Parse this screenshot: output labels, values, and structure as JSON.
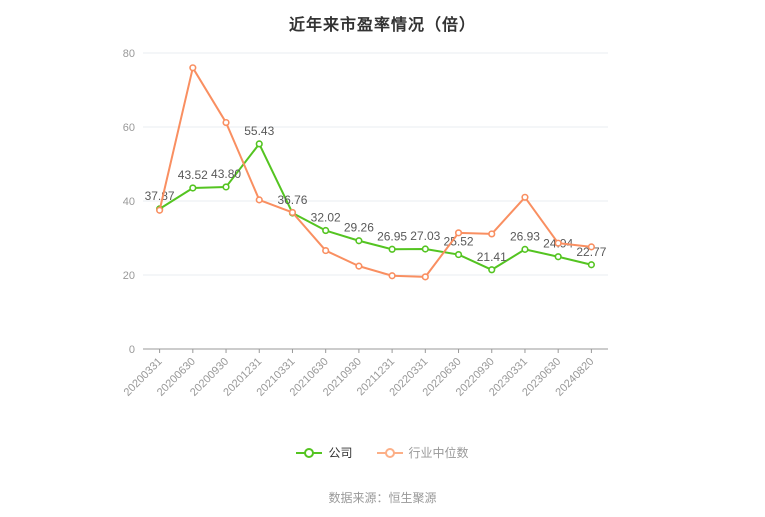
{
  "title": "近年来市盈率情况（倍）",
  "footer": "数据来源：恒生聚源",
  "legend": {
    "company": {
      "label": "公司",
      "icon": "line-series-icon",
      "color": "#54C421",
      "text_color": "#333333"
    },
    "industry": {
      "label": "行业中位数",
      "icon": "line-series-icon",
      "color": "#FCAF87",
      "text_color": "#999999"
    }
  },
  "colors": {
    "background": "#FFFFFF",
    "title": "#333333",
    "grid": "#E8ECF2",
    "axis": "#999999",
    "axis_label": "#999999",
    "data_label": "#595959",
    "footer": "#999999",
    "company_line": "#54C421",
    "industry_line": "#F98F61"
  },
  "chart_data": {
    "type": "line",
    "title": "近年来市盈率情况（倍）",
    "xlabel": "",
    "ylabel": "",
    "ylim": [
      0,
      80
    ],
    "yticks": [
      0,
      20,
      40,
      60,
      80
    ],
    "grid": true,
    "legend_position": "bottom",
    "categories": [
      "20200331",
      "20200630",
      "20200930",
      "20201231",
      "20210331",
      "20210630",
      "20210930",
      "20211231",
      "20220331",
      "20220630",
      "20220930",
      "20230331",
      "20230630",
      "20240820"
    ],
    "series": [
      {
        "name": "公司",
        "color": "#54C421",
        "values": [
          37.87,
          43.52,
          43.8,
          55.43,
          36.76,
          32.02,
          29.26,
          26.95,
          27.03,
          25.52,
          21.41,
          26.93,
          24.94,
          22.77
        ],
        "labels": [
          "37.87",
          "43.52",
          "43.80",
          "55.43",
          "36.76",
          "32.02",
          "29.26",
          "26.95",
          "27.03",
          "25.52",
          "21.41",
          "26.93",
          "24.94",
          "22.77"
        ],
        "show_labels": true
      },
      {
        "name": "行业中位数",
        "color": "#F98F61",
        "values": [
          37.5,
          76.0,
          61.2,
          40.3,
          36.9,
          26.6,
          22.4,
          19.8,
          19.5,
          31.4,
          31.1,
          41.0,
          28.6,
          27.6
        ],
        "labels": [],
        "show_labels": false
      }
    ]
  }
}
